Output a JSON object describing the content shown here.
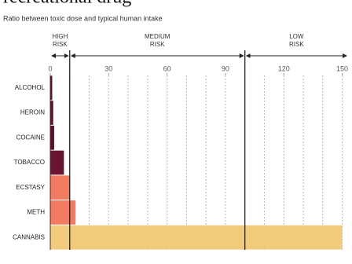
{
  "chart_data": {
    "type": "bar",
    "orientation": "horizontal",
    "title": "recreational drug",
    "subtitle": "Ratio between toxic dose and typical human intake",
    "categories": [
      "ALCOHOL",
      "HEROIN",
      "COCAINE",
      "TOBACCO",
      "ECSTASY",
      "METH",
      "CANNABIS"
    ],
    "values": [
      1,
      1.5,
      2,
      7,
      10,
      13,
      150
    ],
    "colors": [
      "#5e0f2f",
      "#5e0f2f",
      "#5e0f2f",
      "#6a1433",
      "#f07b60",
      "#f07b60",
      "#f2ca7c"
    ],
    "xlim": [
      0,
      153
    ],
    "xticks": [
      0,
      30,
      60,
      90,
      120,
      150
    ],
    "minor_xticks": [
      10,
      20,
      30,
      40,
      50,
      60,
      70,
      80,
      90,
      110,
      120,
      130,
      140,
      150
    ],
    "zones": [
      {
        "lines": [
          "HIGH",
          "RISK"
        ],
        "range": [
          0,
          10
        ]
      },
      {
        "lines": [
          "MEDIUM",
          "RISK"
        ],
        "range": [
          10,
          100
        ]
      },
      {
        "lines": [
          "LOW",
          "RISK"
        ],
        "range": [
          100,
          153
        ]
      }
    ]
  }
}
